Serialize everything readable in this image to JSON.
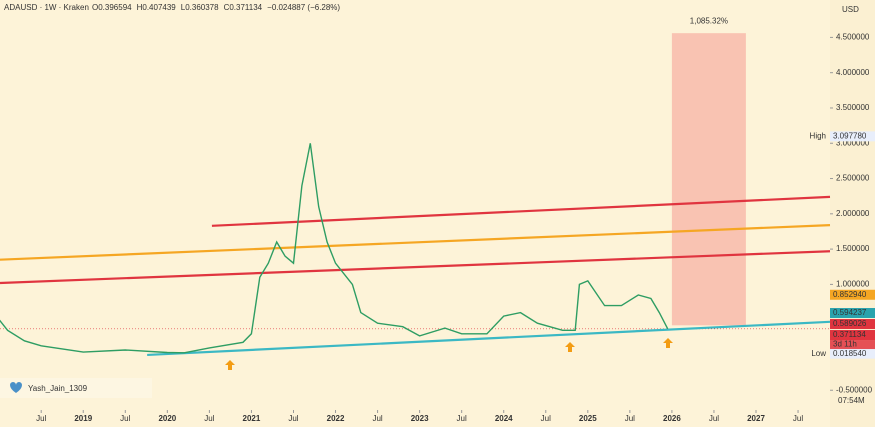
{
  "chart_data": {
    "type": "line",
    "title": "ADAUSD · 1W · Kraken",
    "ohlc": [
      "O0.396594",
      "H0.407439",
      "L0.360378",
      "C0.371134",
      "−0.024887 (−6.28%)"
    ],
    "currency": "USD",
    "watermark": "Yash_Jain_1309",
    "corner_note": "07:54M",
    "color": "#2e9d63",
    "xlim": [
      2018.01,
      2027.88
    ],
    "ylim": [
      -0.78,
      5.03
    ],
    "x": [
      2018.0,
      2018.1,
      2018.3,
      2018.5,
      2019.0,
      2019.5,
      2020.0,
      2020.2,
      2020.5,
      2020.9,
      2021.0,
      2021.1,
      2021.2,
      2021.3,
      2021.4,
      2021.5,
      2021.6,
      2021.7,
      2021.8,
      2021.9,
      2022.0,
      2022.2,
      2022.3,
      2022.5,
      2022.8,
      2023.0,
      2023.3,
      2023.5,
      2023.8,
      2024.0,
      2024.2,
      2024.4,
      2024.7,
      2024.85,
      2024.9,
      2025.0,
      2025.2,
      2025.4,
      2025.6,
      2025.75,
      2025.85,
      2025.95
    ],
    "values": [
      0.5,
      0.35,
      0.2,
      0.13,
      0.04,
      0.07,
      0.035,
      0.03,
      0.1,
      0.18,
      0.3,
      1.1,
      1.3,
      1.6,
      1.4,
      1.3,
      2.4,
      3.0,
      2.1,
      1.6,
      1.3,
      1.0,
      0.6,
      0.45,
      0.4,
      0.27,
      0.38,
      0.3,
      0.3,
      0.55,
      0.6,
      0.45,
      0.35,
      0.35,
      1.0,
      1.05,
      0.7,
      0.7,
      0.85,
      0.8,
      0.6,
      0.37
    ],
    "yticks": [
      {
        "value": 4.5,
        "label": "4.500000"
      },
      {
        "value": 4.0,
        "label": "4.000000"
      },
      {
        "value": 3.5,
        "label": "3.500000"
      },
      {
        "value": 3.0,
        "label": "3.000000"
      },
      {
        "value": 2.5,
        "label": "2.500000"
      },
      {
        "value": 2.0,
        "label": "2.000000"
      },
      {
        "value": 1.5,
        "label": "1.500000"
      },
      {
        "value": 1.0,
        "label": "1.000000"
      },
      {
        "value": -0.5,
        "label": "-0.500000"
      }
    ],
    "xticks": [
      {
        "value": 2018.5,
        "label": "Jul"
      },
      2019,
      {
        "value": 2019.5,
        "label": "Jul"
      },
      2020,
      {
        "value": 2020.5,
        "label": "Jul"
      },
      2021,
      {
        "value": 2021.5,
        "label": "Jul"
      },
      2022,
      {
        "value": 2022.5,
        "label": "Jul"
      },
      2023,
      {
        "value": 2023.5,
        "label": "Jul"
      },
      2024,
      {
        "value": 2024.5,
        "label": "Jul"
      },
      2025,
      {
        "value": 2025.5,
        "label": "Jul"
      },
      2026,
      {
        "value": 2026.5,
        "label": "Jul"
      },
      2027,
      {
        "value": 2027.5,
        "label": "Jul"
      }
    ],
    "trendlines": [
      {
        "x": [
          2020.53,
          2027.88
        ],
        "values": [
          1.83,
          2.24
        ],
        "color": "#e0343f"
      },
      {
        "x": [
          2018.01,
          2027.88
        ],
        "values": [
          1.35,
          1.84
        ],
        "color": "#f5a623"
      },
      {
        "x": [
          2018.01,
          2027.88
        ],
        "values": [
          1.02,
          1.47
        ],
        "color": "#e0343f"
      },
      {
        "x": [
          2019.76,
          2027.88
        ],
        "values": [
          0.0,
          0.47
        ],
        "color": "#3bb8c4"
      }
    ],
    "projection": {
      "x": [
        2026.0,
        2026.88
      ],
      "values": [
        0.42,
        4.56
      ],
      "label": "1,085.32%",
      "color": "#f7b3a6"
    },
    "high": {
      "label": "High",
      "value": 3.09778,
      "value_label": "3.097780"
    },
    "low": {
      "label": "Low",
      "value": 0.01854,
      "value_label": "0.018540"
    },
    "price_labels": [
      {
        "value": 0.85294,
        "label": "0.852940",
        "color": "#f5a623"
      },
      {
        "value": 0.594237,
        "label": "0.594237",
        "color": "#2aa3ad"
      },
      {
        "value": 0.589026,
        "label": "0.589026",
        "color": "#e0343f"
      },
      {
        "value": 0.371134,
        "label": "0.371134",
        "color": "#e0343f",
        "countdown": "3d 11h"
      }
    ]
  }
}
